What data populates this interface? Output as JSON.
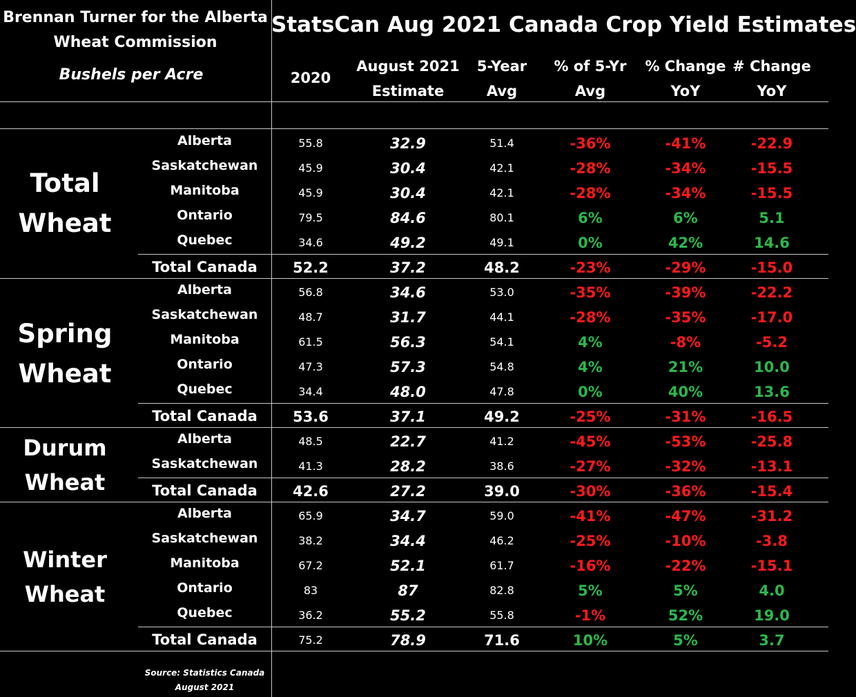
{
  "header": {
    "author_line1": "Brennan Turner for the Alberta",
    "author_line2": "Wheat Commission",
    "units": "Bushels per Acre",
    "title": "StatsCan Aug 2021 Canada Crop Yield Estimates"
  },
  "columns": {
    "c2020": "2020",
    "est_l1": "August 2021",
    "est_l2": "Estimate",
    "avg_l1": "5-Year",
    "avg_l2": "Avg",
    "pct5_l1": "% of 5-Yr",
    "pct5_l2": "Avg",
    "pchg_l1": "% Change",
    "pchg_l2": "YoY",
    "nchg_l1": "# Change",
    "nchg_l2": "YoY"
  },
  "groups": {
    "total": {
      "line1": "Total",
      "line2": "Wheat"
    },
    "spring": {
      "line1": "Spring",
      "line2": "Wheat"
    },
    "durum": {
      "line1": "Durum",
      "line2": "Wheat"
    },
    "winter": {
      "line1": "Winter",
      "line2": "Wheat"
    }
  },
  "source": {
    "line1": "Source: Statistics Canada",
    "line2": "August 2021"
  },
  "colors": {
    "negative": "#ff1a1a",
    "positive": "#2db84a",
    "background": "#000000",
    "text": "#ffffff"
  },
  "chart_data": {
    "type": "table",
    "title": "StatsCan Aug 2021 Canada Crop Yield Estimates",
    "units": "Bushels per Acre",
    "columns": [
      "2020",
      "August 2021 Estimate",
      "5-Year Avg",
      "% of 5-Yr Avg",
      "% Change YoY",
      "# Change YoY"
    ],
    "rows": [
      {
        "group": "Total Wheat",
        "region": "Alberta",
        "v2020": "55.8",
        "est2021": "32.9",
        "avg5": "51.4",
        "pct5": "-36%",
        "pct_yoy": "-41%",
        "num_yoy": "-22.9"
      },
      {
        "group": "Total Wheat",
        "region": "Saskatchewan",
        "v2020": "45.9",
        "est2021": "30.4",
        "avg5": "42.1",
        "pct5": "-28%",
        "pct_yoy": "-34%",
        "num_yoy": "-15.5"
      },
      {
        "group": "Total Wheat",
        "region": "Manitoba",
        "v2020": "45.9",
        "est2021": "30.4",
        "avg5": "42.1",
        "pct5": "-28%",
        "pct_yoy": "-34%",
        "num_yoy": "-15.5"
      },
      {
        "group": "Total Wheat",
        "region": "Ontario",
        "v2020": "79.5",
        "est2021": "84.6",
        "avg5": "80.1",
        "pct5": "6%",
        "pct_yoy": "6%",
        "num_yoy": "5.1"
      },
      {
        "group": "Total Wheat",
        "region": "Quebec",
        "v2020": "34.6",
        "est2021": "49.2",
        "avg5": "49.1",
        "pct5": "0%",
        "pct_yoy": "42%",
        "num_yoy": "14.6"
      },
      {
        "group": "Total Wheat",
        "region": "Total Canada",
        "total": true,
        "v2020": "52.2",
        "est2021": "37.2",
        "avg5": "48.2",
        "pct5": "-23%",
        "pct_yoy": "-29%",
        "num_yoy": "-15.0"
      },
      {
        "group": "Spring Wheat",
        "region": "Alberta",
        "v2020": "56.8",
        "est2021": "34.6",
        "avg5": "53.0",
        "pct5": "-35%",
        "pct_yoy": "-39%",
        "num_yoy": "-22.2"
      },
      {
        "group": "Spring Wheat",
        "region": "Saskatchewan",
        "v2020": "48.7",
        "est2021": "31.7",
        "avg5": "44.1",
        "pct5": "-28%",
        "pct_yoy": "-35%",
        "num_yoy": "-17.0"
      },
      {
        "group": "Spring Wheat",
        "region": "Manitoba",
        "v2020": "61.5",
        "est2021": "56.3",
        "avg5": "54.1",
        "pct5": "4%",
        "pct_yoy": "-8%",
        "num_yoy": "-5.2"
      },
      {
        "group": "Spring Wheat",
        "region": "Ontario",
        "v2020": "47.3",
        "est2021": "57.3",
        "avg5": "54.8",
        "pct5": "4%",
        "pct_yoy": "21%",
        "num_yoy": "10.0"
      },
      {
        "group": "Spring Wheat",
        "region": "Quebec",
        "v2020": "34.4",
        "est2021": "48.0",
        "avg5": "47.8",
        "pct5": "0%",
        "pct_yoy": "40%",
        "num_yoy": "13.6"
      },
      {
        "group": "Spring Wheat",
        "region": "Total Canada",
        "total": true,
        "v2020": "53.6",
        "est2021": "37.1",
        "avg5": "49.2",
        "pct5": "-25%",
        "pct_yoy": "-31%",
        "num_yoy": "-16.5"
      },
      {
        "group": "Durum Wheat",
        "region": "Alberta",
        "v2020": "48.5",
        "est2021": "22.7",
        "avg5": "41.2",
        "pct5": "-45%",
        "pct_yoy": "-53%",
        "num_yoy": "-25.8"
      },
      {
        "group": "Durum Wheat",
        "region": "Saskatchewan",
        "v2020": "41.3",
        "est2021": "28.2",
        "avg5": "38.6",
        "pct5": "-27%",
        "pct_yoy": "-32%",
        "num_yoy": "-13.1"
      },
      {
        "group": "Durum Wheat",
        "region": "Total Canada",
        "total": true,
        "v2020": "42.6",
        "est2021": "27.2",
        "avg5": "39.0",
        "pct5": "-30%",
        "pct_yoy": "-36%",
        "num_yoy": "-15.4"
      },
      {
        "group": "Winter Wheat",
        "region": "Alberta",
        "v2020": "65.9",
        "est2021": "34.7",
        "avg5": "59.0",
        "pct5": "-41%",
        "pct_yoy": "-47%",
        "num_yoy": "-31.2"
      },
      {
        "group": "Winter Wheat",
        "region": "Saskatchewan",
        "v2020": "38.2",
        "est2021": "34.4",
        "avg5": "46.2",
        "pct5": "-25%",
        "pct_yoy": "-10%",
        "num_yoy": "-3.8"
      },
      {
        "group": "Winter Wheat",
        "region": "Manitoba",
        "v2020": "67.2",
        "est2021": "52.1",
        "avg5": "61.7",
        "pct5": "-16%",
        "pct_yoy": "-22%",
        "num_yoy": "-15.1"
      },
      {
        "group": "Winter Wheat",
        "region": "Ontario",
        "v2020": "83",
        "est2021": "87",
        "avg5": "82.8",
        "pct5": "5%",
        "pct_yoy": "5%",
        "num_yoy": "4.0"
      },
      {
        "group": "Winter Wheat",
        "region": "Quebec",
        "v2020": "36.2",
        "est2021": "55.2",
        "avg5": "55.8",
        "pct5": "-1%",
        "pct_yoy": "52%",
        "num_yoy": "19.0"
      },
      {
        "group": "Winter Wheat",
        "region": "Total Canada",
        "total": true,
        "v2020": "75.2",
        "est2021": "78.9",
        "avg5": "71.6",
        "pct5": "10%",
        "pct_yoy": "5%",
        "num_yoy": "3.7"
      }
    ]
  }
}
